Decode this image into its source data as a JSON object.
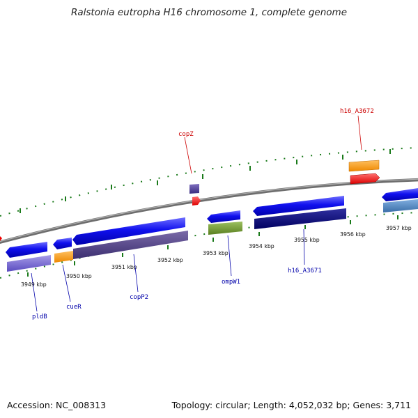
{
  "title": "Ralstonia eutropha H16 chromosome 1, complete genome",
  "footer": {
    "accession": "Accession: NC_008313",
    "summary": "Topology: circular; Length: 4,052,032 bp; Genes: 3,711"
  },
  "colors": {
    "backbone": "#8a8a8a",
    "tick": "#1a7a1a",
    "label_blue": "#0000aa",
    "label_red": "#cc0000"
  },
  "ticks": [
    {
      "label": "3949 kbp"
    },
    {
      "label": "3950 kbp"
    },
    {
      "label": "3951 kbp"
    },
    {
      "label": "3952 kbp"
    },
    {
      "label": "3953 kbp"
    },
    {
      "label": "3954 kbp"
    },
    {
      "label": "3955 kbp"
    },
    {
      "label": "3956 kbp"
    },
    {
      "label": "3957 kbp"
    }
  ],
  "gene_labels": [
    {
      "name": "pldB",
      "color": "#0000aa"
    },
    {
      "name": "cueR",
      "color": "#0000aa"
    },
    {
      "name": "copP2",
      "color": "#0000aa"
    },
    {
      "name": "ompW1",
      "color": "#0000aa"
    },
    {
      "name": "h16_A3671",
      "color": "#0000aa"
    },
    {
      "name": "copZ",
      "color": "#cc0000"
    },
    {
      "name": "h16_A3672",
      "color": "#cc0000"
    }
  ]
}
